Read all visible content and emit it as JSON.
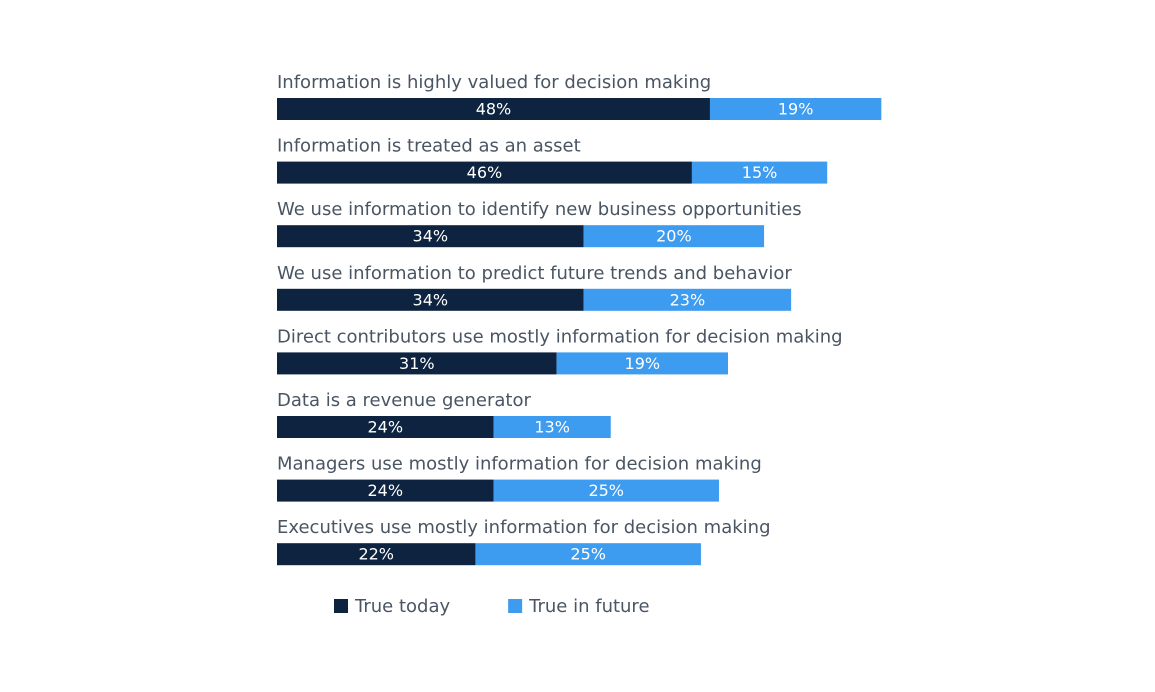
{
  "chart_data": {
    "type": "stacked-bar-horizontal",
    "categories": [
      "Information is highly valued for decision making",
      "Information is treated as an asset",
      "We use information to identify new business opportunities",
      "We use information to predict future trends and behavior",
      "Direct contributors use mostly information for decision making",
      "Data is a revenue generator",
      "Managers use mostly information for decision making",
      "Executives use mostly information for decision making"
    ],
    "series": [
      {
        "name": "True today",
        "color": "#0d2340",
        "values": [
          48,
          46,
          34,
          34,
          31,
          24,
          24,
          22
        ],
        "value_labels": [
          "48%",
          "46%",
          "34%",
          "34%",
          "31%",
          "24%",
          "24%",
          "22%"
        ]
      },
      {
        "name": "True in future",
        "color": "#3d9bf0",
        "values": [
          19,
          15,
          20,
          23,
          19,
          13,
          25,
          25
        ],
        "value_labels": [
          "19%",
          "15%",
          "20%",
          "23%",
          "19%",
          "13%",
          "25%",
          "25%"
        ]
      }
    ]
  }
}
